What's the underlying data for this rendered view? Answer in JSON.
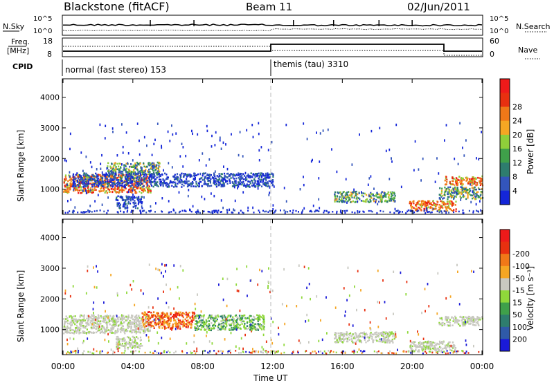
{
  "header": {
    "station": "Blackstone (fitACF)",
    "beam": "Beam 11",
    "date": "02/Jun/2011"
  },
  "noise_panel": {
    "left_label": "N.Sky",
    "right_label": "N.Search",
    "left_ticks": [
      "10^5",
      "10^0"
    ],
    "right_ticks": [
      "10^5",
      "10^0"
    ]
  },
  "freq_panel": {
    "left_label_line1": "Freq.",
    "left_label_line2": "[MHz]",
    "right_label": "Nave",
    "left_ticks": [
      "18",
      "8"
    ],
    "right_ticks": [
      "60",
      "0"
    ]
  },
  "cpid": {
    "label": "CPID",
    "modes": [
      {
        "name": "normal (fast stereo) 153",
        "start_hour": 0
      },
      {
        "name": "themis (tau) 3310",
        "start_hour": 12
      }
    ]
  },
  "chart_data": [
    {
      "type": "heatmap",
      "name": "power",
      "ylabel": "Slant Range [km]",
      "ylim": [
        180,
        4600
      ],
      "yticks": [
        "1000",
        "2000",
        "3000",
        "4000"
      ],
      "xlim_hours": [
        0,
        24
      ],
      "colorbar": {
        "label": "Power [dB]",
        "ticks": [
          "4",
          "8",
          "12",
          "16",
          "20",
          "24",
          "28"
        ],
        "colors": [
          "#1426d8",
          "#3355bb",
          "#2e7d6e",
          "#3fa04a",
          "#8fcf3a",
          "#f5a623",
          "#f07818",
          "#e83010",
          "#ee1a1a"
        ]
      },
      "features": [
        {
          "x_start_h": 0.0,
          "x_end_h": 5.0,
          "r_start_km": 900,
          "r_end_km": 1500,
          "level": "high"
        },
        {
          "x_start_h": 2.5,
          "x_end_h": 5.5,
          "r_start_km": 1500,
          "r_end_km": 1900,
          "level": "medium"
        },
        {
          "x_start_h": 0.5,
          "x_end_h": 12.0,
          "r_start_km": 1100,
          "r_end_km": 1550,
          "level": "low"
        },
        {
          "x_start_h": 3.0,
          "x_end_h": 4.5,
          "r_start_km": 400,
          "r_end_km": 800,
          "level": "low"
        },
        {
          "x_start_h": 15.5,
          "x_end_h": 19.0,
          "r_start_km": 600,
          "r_end_km": 950,
          "level": "medium"
        },
        {
          "x_start_h": 19.8,
          "x_end_h": 22.5,
          "r_start_km": 300,
          "r_end_km": 650,
          "level": "high"
        },
        {
          "x_start_h": 21.5,
          "x_end_h": 24.0,
          "r_start_km": 700,
          "r_end_km": 1100,
          "level": "medium"
        },
        {
          "x_start_h": 21.8,
          "x_end_h": 24.0,
          "r_start_km": 1150,
          "r_end_km": 1450,
          "level": "high"
        }
      ]
    },
    {
      "type": "heatmap",
      "name": "velocity",
      "ylabel": "Slant Range [km]",
      "ylim": [
        180,
        4600
      ],
      "yticks": [
        "1000",
        "2000",
        "3000",
        "4000"
      ],
      "xlim_hours": [
        0,
        24
      ],
      "colorbar": {
        "label": "Velocity [m s⁻¹]",
        "ticks": [
          "200",
          "100",
          "50",
          "15",
          "-15",
          "-50",
          "-100",
          "-200"
        ],
        "colors": [
          "#1a1ad8",
          "#2f5aa8",
          "#2e7d6e",
          "#3fa04a",
          "#8fd83a",
          "#c8c8c0",
          "#f5a623",
          "#f07818",
          "#e83010",
          "#ee1a1a"
        ]
      },
      "features": [
        {
          "x_start_h": 0.0,
          "x_end_h": 5.0,
          "r_start_km": 900,
          "r_end_km": 1500,
          "level": "ground"
        },
        {
          "x_start_h": 4.5,
          "x_end_h": 7.5,
          "r_start_km": 1050,
          "r_end_km": 1600,
          "level": "negative"
        },
        {
          "x_start_h": 7.5,
          "x_end_h": 11.5,
          "r_start_km": 1000,
          "r_end_km": 1500,
          "level": "positive"
        },
        {
          "x_start_h": 3.0,
          "x_end_h": 4.5,
          "r_start_km": 400,
          "r_end_km": 800,
          "level": "ground"
        },
        {
          "x_start_h": 15.5,
          "x_end_h": 19.0,
          "r_start_km": 600,
          "r_end_km": 950,
          "level": "ground"
        },
        {
          "x_start_h": 19.8,
          "x_end_h": 22.5,
          "r_start_km": 300,
          "r_end_km": 650,
          "level": "ground"
        },
        {
          "x_start_h": 21.5,
          "x_end_h": 24.0,
          "r_start_km": 1150,
          "r_end_km": 1450,
          "level": "ground"
        }
      ]
    }
  ],
  "x_axis": {
    "ticks": [
      "00:00",
      "04:00",
      "08:00",
      "12:00",
      "16:00",
      "20:00",
      "00:00"
    ],
    "label": "Time UT"
  }
}
